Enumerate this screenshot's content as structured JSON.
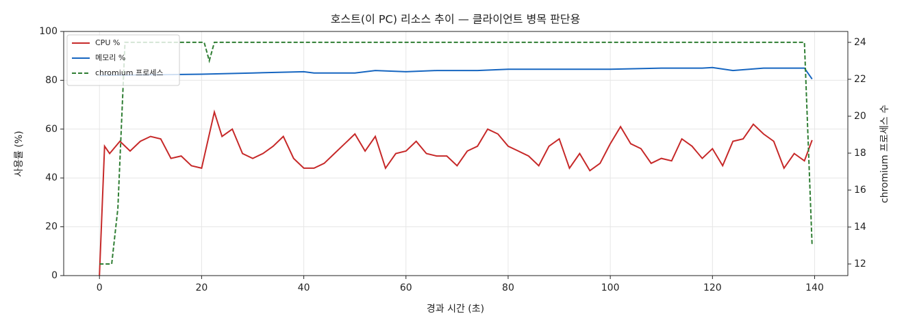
{
  "chart_data": {
    "type": "line",
    "title": "호스트(이 PC) 리소스 추이 — 클라이언트 병목 판단용",
    "x_label": "경과 시간 (초)",
    "y_label": "사용률 (%)",
    "y2_label": "chromium 프로세스 수",
    "xlim": [
      -7,
      146.5
    ],
    "xticks": [
      0,
      20,
      40,
      60,
      80,
      100,
      120,
      140
    ],
    "ylim": [
      0,
      100
    ],
    "yticks": [
      0,
      20,
      40,
      60,
      80,
      100
    ],
    "y2lim": [
      11.37,
      24.59
    ],
    "y2ticks": [
      12,
      14,
      16,
      18,
      20,
      22,
      24
    ],
    "grid": true,
    "legend": "upper left",
    "series": [
      {
        "name": "CPU %",
        "color": "#c62828",
        "style": "solid",
        "x": [
          0,
          1,
          2,
          4,
          6,
          8,
          10,
          12,
          14,
          16,
          18,
          20,
          22.5,
          24,
          26,
          28,
          30,
          32,
          34,
          36,
          38,
          40,
          42,
          44,
          46,
          48,
          50,
          52,
          54,
          56,
          58,
          60,
          62,
          64,
          66,
          68,
          70,
          72,
          74,
          76,
          78,
          80,
          82,
          84,
          86,
          88,
          90,
          92,
          94,
          96,
          98,
          100,
          102,
          104,
          106,
          108,
          110,
          112,
          114,
          116,
          118,
          120,
          122,
          124,
          126,
          128,
          130,
          132,
          134,
          136,
          138,
          139.5
        ],
        "values": [
          0,
          53,
          50,
          55,
          51,
          55,
          57,
          56,
          48,
          49,
          45,
          44,
          67,
          57,
          60,
          50,
          48,
          50,
          53,
          57,
          48,
          44,
          44,
          46,
          50,
          54,
          58,
          51,
          57,
          44,
          50,
          51,
          55,
          50,
          49,
          49,
          45,
          51,
          53,
          60,
          58,
          53,
          51,
          49,
          45,
          53,
          56,
          44,
          50,
          43,
          46,
          54,
          61,
          54,
          52,
          46,
          48,
          47,
          56,
          53,
          48,
          52,
          45,
          55,
          56,
          62,
          58,
          55,
          44,
          50,
          47,
          55.5
        ]
      },
      {
        "name": "메모리 %",
        "color": "#1565c0",
        "style": "solid",
        "x": [
          0,
          20,
          30,
          40,
          42,
          50,
          54,
          60,
          66,
          74,
          80,
          90,
          100,
          110,
          118,
          120,
          124,
          130,
          138,
          139.5
        ],
        "values": [
          82,
          82.5,
          83,
          83.5,
          83,
          83,
          84,
          83.5,
          84,
          84,
          84.5,
          84.5,
          84.5,
          85,
          85,
          85.2,
          84,
          85,
          85,
          80.5
        ]
      },
      {
        "name": "chromium 프로세스",
        "color": "#2e7d32",
        "style": "dashed",
        "axis": "y2",
        "x": [
          0,
          2.4,
          3.6,
          5,
          20.5,
          21.5,
          22.5,
          138,
          139.5
        ],
        "values": [
          12,
          12,
          15,
          24,
          24,
          23,
          24,
          24,
          13
        ]
      }
    ]
  }
}
